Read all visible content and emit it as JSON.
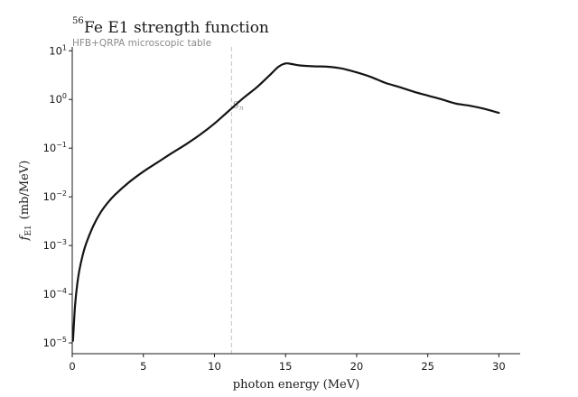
{
  "chart_data": {
    "type": "line",
    "title": {
      "isotope_mass": "56",
      "text": "Fe  E1 strength function"
    },
    "subtitle": "HFB+QRPA microscopic table",
    "xlabel": "photon energy (MeV)",
    "ylabel": {
      "symbol": "f",
      "subscript": "E1",
      "unit": "(mb/MeV)"
    },
    "xlim": [
      0,
      31.5
    ],
    "ylim": [
      6e-06,
      12
    ],
    "yscale": "log",
    "grid": false,
    "x_ticks": [
      0,
      5,
      10,
      15,
      20,
      25,
      30
    ],
    "y_ticks": [
      {
        "value": 1e-05,
        "base": "10",
        "exp": "−5"
      },
      {
        "value": 0.0001,
        "base": "10",
        "exp": "−4"
      },
      {
        "value": 0.001,
        "base": "10",
        "exp": "−3"
      },
      {
        "value": 0.01,
        "base": "10",
        "exp": "−2"
      },
      {
        "value": 0.1,
        "base": "10",
        "exp": "−1"
      },
      {
        "value": 1,
        "base": "10",
        "exp": "0"
      },
      {
        "value": 10,
        "base": "10",
        "exp": "1"
      }
    ],
    "annotations": [
      {
        "x": 11.2,
        "symbol": "S",
        "subscript": "n",
        "style": "dashed vertical line"
      }
    ],
    "series": [
      {
        "color": "#141414",
        "x": [
          0.05,
          0.1,
          0.2,
          0.35,
          0.5,
          0.75,
          1.0,
          1.5,
          2.0,
          2.5,
          3.0,
          4.0,
          5.0,
          6.0,
          7.0,
          8.0,
          9.0,
          10.0,
          11.0,
          12.0,
          13.0,
          14.0,
          14.5,
          15.0,
          15.5,
          16.0,
          17.0,
          18.0,
          19.0,
          20.0,
          21.0,
          22.0,
          23.0,
          24.0,
          25.0,
          26.0,
          27.0,
          28.0,
          29.0,
          30.0
        ],
        "y": [
          1.1e-05,
          2e-05,
          6e-05,
          0.00016,
          0.00031,
          0.00066,
          0.00115,
          0.0026,
          0.0048,
          0.0076,
          0.011,
          0.02,
          0.033,
          0.051,
          0.079,
          0.12,
          0.19,
          0.32,
          0.58,
          1.05,
          1.8,
          3.4,
          4.7,
          5.5,
          5.3,
          5.0,
          4.8,
          4.7,
          4.3,
          3.6,
          2.9,
          2.2,
          1.8,
          1.45,
          1.2,
          1.0,
          0.82,
          0.74,
          0.64,
          0.53
        ]
      }
    ]
  }
}
